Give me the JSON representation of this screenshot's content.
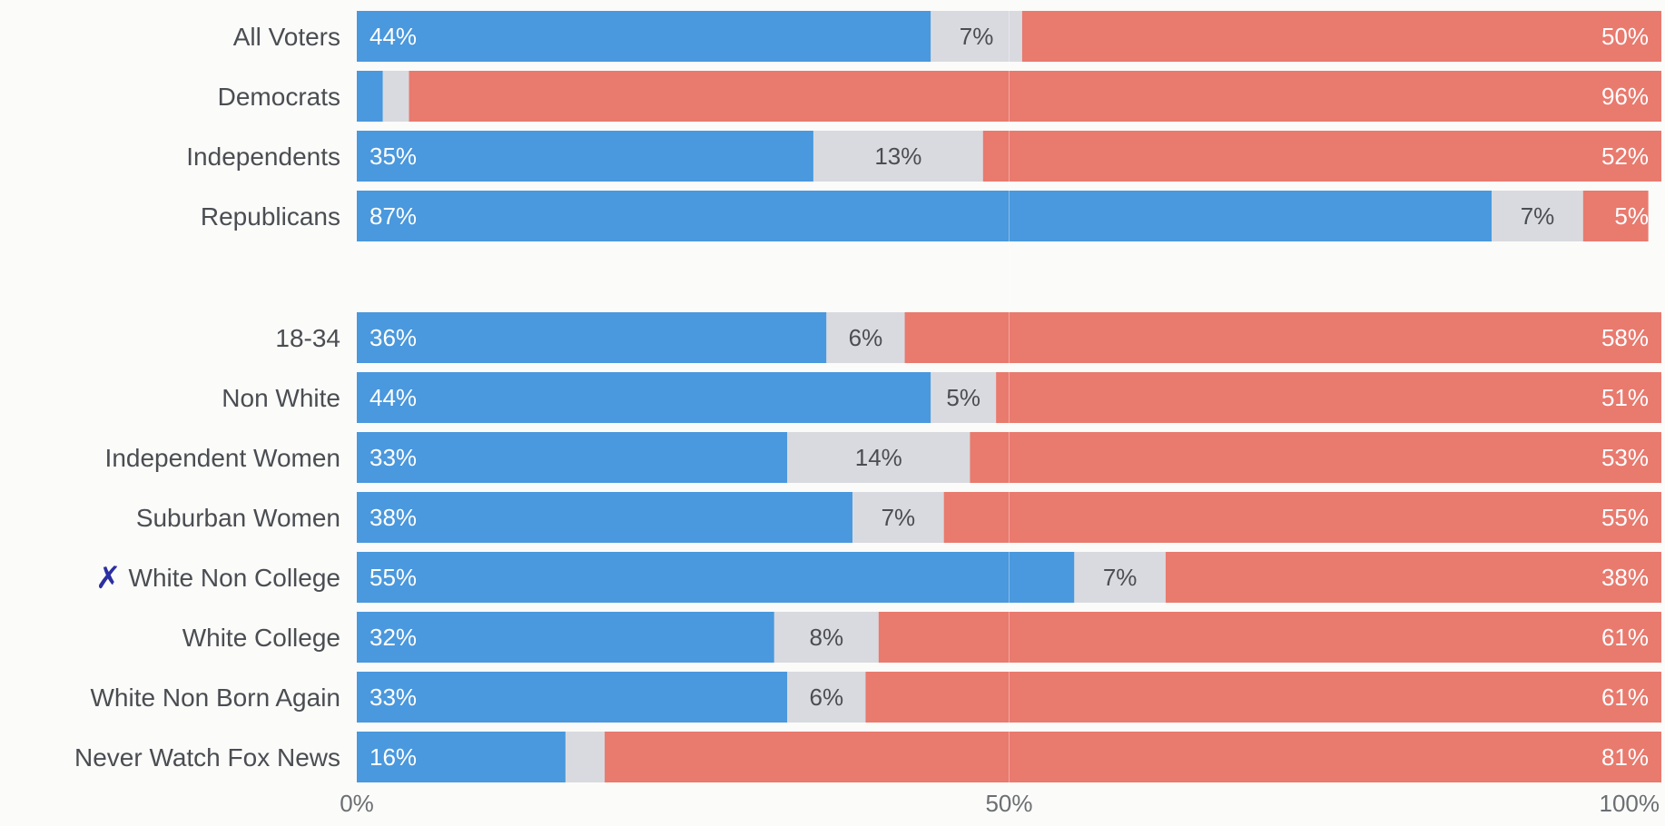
{
  "chart_data": {
    "type": "bar",
    "orientation": "horizontal",
    "stacked": true,
    "normalized_to": 100,
    "grid": false,
    "legend": "none",
    "xlim": [
      0,
      100
    ],
    "x_ticks": [
      {
        "value": 0,
        "label": "0%"
      },
      {
        "value": 50,
        "label": "50%"
      },
      {
        "value": 100,
        "label": "100%"
      }
    ],
    "colors": {
      "blue": "#4a98dd",
      "grey": "#d9dadf",
      "red": "#e97a6e",
      "label_on_dark": "#ffffff",
      "label_on_grey": "#4a4d52"
    },
    "groups": [
      {
        "rows": [
          {
            "category": "All Voters",
            "blue": 44,
            "grey": 7,
            "red": 50,
            "blue_label": "44%",
            "grey_label": "7%",
            "red_label": "50%"
          },
          {
            "category": "Democrats",
            "blue": 2,
            "grey": 2,
            "red": 96,
            "blue_label": "",
            "grey_label": "",
            "red_label": "96%"
          },
          {
            "category": "Independents",
            "blue": 35,
            "grey": 13,
            "red": 52,
            "blue_label": "35%",
            "grey_label": "13%",
            "red_label": "52%"
          },
          {
            "category": "Republicans",
            "blue": 87,
            "grey": 7,
            "red": 5,
            "blue_label": "87%",
            "grey_label": "7%",
            "red_label": "5%"
          }
        ]
      },
      {
        "rows": [
          {
            "category": "18-34",
            "blue": 36,
            "grey": 6,
            "red": 58,
            "blue_label": "36%",
            "grey_label": "6%",
            "red_label": "58%"
          },
          {
            "category": "Non White",
            "blue": 44,
            "grey": 5,
            "red": 51,
            "blue_label": "44%",
            "grey_label": "5%",
            "red_label": "51%"
          },
          {
            "category": "Independent Women",
            "blue": 33,
            "grey": 14,
            "red": 53,
            "blue_label": "33%",
            "grey_label": "14%",
            "red_label": "53%"
          },
          {
            "category": "Suburban Women",
            "blue": 38,
            "grey": 7,
            "red": 55,
            "blue_label": "38%",
            "grey_label": "7%",
            "red_label": "55%"
          },
          {
            "category": "White Non College",
            "blue": 55,
            "grey": 7,
            "red": 38,
            "blue_label": "55%",
            "grey_label": "7%",
            "red_label": "38%",
            "marked": true,
            "mark_symbol": "✗"
          },
          {
            "category": "White College",
            "blue": 32,
            "grey": 8,
            "red": 61,
            "blue_label": "32%",
            "grey_label": "8%",
            "red_label": "61%"
          },
          {
            "category": "White Non Born Again",
            "blue": 33,
            "grey": 6,
            "red": 61,
            "blue_label": "33%",
            "grey_label": "6%",
            "red_label": "61%"
          },
          {
            "category": "Never Watch Fox News",
            "blue": 16,
            "grey": 3,
            "red": 81,
            "blue_label": "16%",
            "grey_label": "",
            "red_label": "81%"
          }
        ]
      }
    ]
  }
}
